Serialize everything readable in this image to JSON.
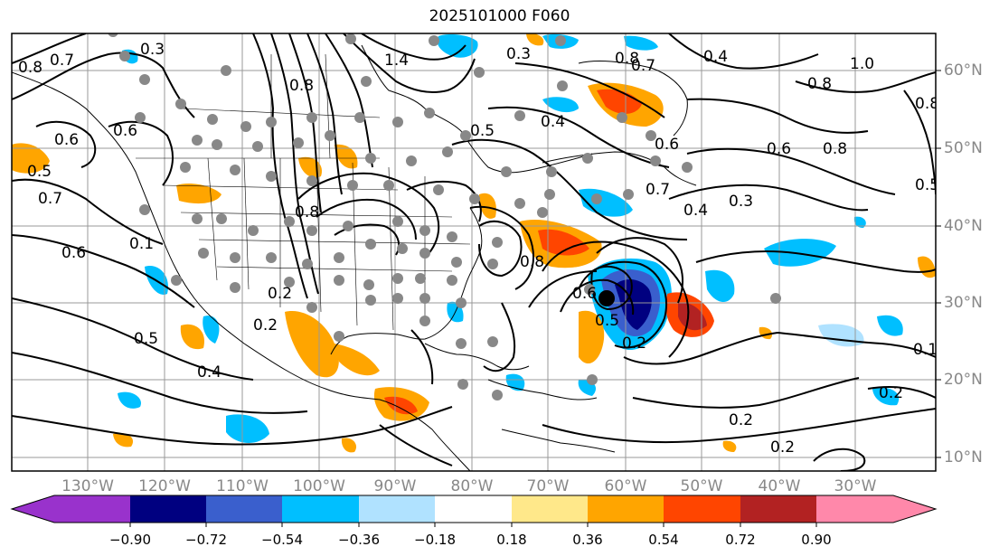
{
  "title": "2025101000 F060",
  "map": {
    "lon_labels": [
      "130°W",
      "120°W",
      "110°W",
      "100°W",
      "90°W",
      "80°W",
      "70°W",
      "60°W",
      "50°W",
      "40°W",
      "30°W"
    ],
    "lat_labels": [
      "60°N",
      "50°N",
      "40°N",
      "30°N",
      "20°N",
      "10°N"
    ],
    "contour_labels": [
      "0.8",
      "0.7",
      "0.3",
      "0.6",
      "0.5",
      "0.6",
      "0.7",
      "0.6",
      "0.1",
      "0.2",
      "0.4",
      "0.8",
      "1.4",
      "0.3",
      "0.8",
      "0.7",
      "0.4",
      "1.0",
      "0.8",
      "0.8",
      "0.6",
      "0.5",
      "0.4",
      "0.8",
      "0.7",
      "0.5",
      "0.6",
      "0.4",
      "0.3",
      "0.8",
      "0.8",
      "0.2",
      "0.5",
      "0.6",
      "0.5",
      "0.2",
      "0.2",
      "0.2",
      "0.2",
      "0.1"
    ]
  },
  "colorbar": {
    "tick_labels": [
      "−0.90",
      "−0.72",
      "−0.54",
      "−0.36",
      "−0.18",
      "0.18",
      "0.36",
      "0.54",
      "0.72",
      "0.90"
    ],
    "colors": [
      "#9932cc",
      "#000080",
      "#3a5fcd",
      "#00bfff",
      "#b0e2ff",
      "#ffffff",
      "#ffe88a",
      "#ffa500",
      "#ff4500",
      "#b22222",
      "#ff88aa"
    ]
  }
}
